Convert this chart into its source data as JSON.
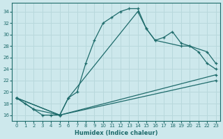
{
  "xlabel": "Humidex (Indice chaleur)",
  "bg_color": "#cde8ec",
  "grid_color": "#b8d8dc",
  "line_color": "#1e6b6b",
  "xlim": [
    -0.5,
    23.5
  ],
  "ylim": [
    15.0,
    35.5
  ],
  "yticks": [
    16,
    18,
    20,
    22,
    24,
    26,
    28,
    30,
    32,
    34
  ],
  "xticks": [
    0,
    1,
    2,
    3,
    4,
    5,
    6,
    7,
    8,
    9,
    10,
    11,
    12,
    13,
    14,
    15,
    16,
    17,
    18,
    19,
    20,
    21,
    22,
    23
  ],
  "line1_x": [
    0,
    1,
    2,
    3,
    4,
    5,
    6,
    7,
    8,
    9,
    10,
    11,
    12,
    13,
    14,
    15,
    16,
    17,
    18,
    19,
    20,
    21,
    22,
    23
  ],
  "line1_y": [
    19,
    18,
    17,
    16,
    16,
    16,
    19,
    20,
    25,
    29,
    32,
    33,
    34,
    34.5,
    34.5,
    31,
    29,
    29.5,
    30.5,
    28.5,
    28,
    27,
    25,
    24
  ],
  "line2_x": [
    0,
    2,
    5,
    6,
    14,
    15,
    16,
    19,
    20,
    22,
    23
  ],
  "line2_y": [
    19,
    17,
    16,
    19,
    34,
    31,
    29,
    28,
    28,
    27,
    25
  ],
  "line3_x": [
    0,
    5,
    23
  ],
  "line3_y": [
    19,
    16,
    23
  ],
  "line4_x": [
    0,
    5,
    23
  ],
  "line4_y": [
    19,
    16,
    22
  ]
}
